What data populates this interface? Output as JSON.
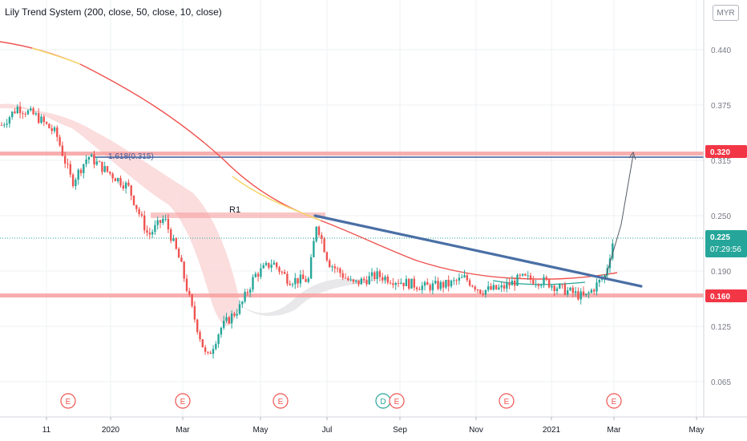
{
  "header": {
    "indicator_title": "Lily Trend System (200, close, 50, close, 10, close)",
    "currency": "MYR"
  },
  "chart_data": {
    "type": "candlestick",
    "yticks": [
      "0.440",
      "0.375",
      "0.315",
      "0.250",
      "0.190",
      "0.125",
      "0.065"
    ],
    "xticks": [
      "11",
      "2020",
      "Mar",
      "May",
      "Jul",
      "Sep",
      "Nov",
      "2021",
      "Mar",
      "May"
    ],
    "price_labels": [
      {
        "value": "0.320",
        "kind": "level",
        "color": "#f23645"
      },
      {
        "value": "0.225",
        "kind": "last",
        "color": "#26a69a",
        "extra": "07:29:56"
      },
      {
        "value": "0.160",
        "kind": "level",
        "color": "#f23645"
      }
    ],
    "annotations": [
      {
        "text": "1.618(0.315)"
      },
      {
        "text": "R1"
      }
    ],
    "event_markers": [
      "E",
      "E",
      "E",
      "D",
      "E",
      "E",
      "E"
    ],
    "colors": {
      "up": "#26a69a",
      "down": "#ef5350",
      "level": "#f7a0a0",
      "trendline": "#4a6fa5",
      "ma200": "#ef5350",
      "fib": "#3d5a99"
    }
  }
}
